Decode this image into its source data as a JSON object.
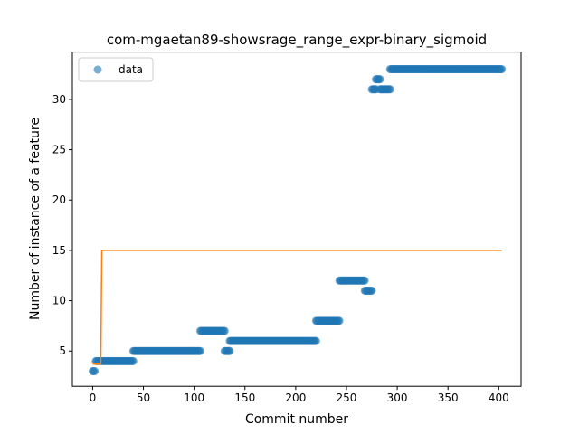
{
  "chart_data": {
    "type": "scatter",
    "title": "com-mgaetan89-showsrage_range_expr-binary_sigmoid",
    "xlabel": "Commit number",
    "ylabel": "Number of instance of a feature",
    "xlim": [
      -20,
      422
    ],
    "ylim": [
      1.5,
      34.7
    ],
    "xticks": [
      0,
      50,
      100,
      150,
      200,
      250,
      300,
      350,
      400
    ],
    "yticks": [
      5,
      10,
      15,
      20,
      25,
      30
    ],
    "legend": {
      "position": "top-left",
      "entries": [
        "data"
      ]
    },
    "colors": {
      "data": "#1f77b4",
      "fit": "#ff7f0e"
    },
    "segments": [
      {
        "x_start": 0,
        "x_end": 2,
        "y": 3
      },
      {
        "x_start": 3,
        "x_end": 40,
        "y": 4
      },
      {
        "x_start": 40,
        "x_end": 106,
        "y": 5
      },
      {
        "x_start": 106,
        "x_end": 130,
        "y": 7
      },
      {
        "x_start": 130,
        "x_end": 135,
        "y": 5
      },
      {
        "x_start": 135,
        "x_end": 220,
        "y": 6
      },
      {
        "x_start": 220,
        "x_end": 243,
        "y": 8
      },
      {
        "x_start": 243,
        "x_end": 268,
        "y": 12
      },
      {
        "x_start": 268,
        "x_end": 275,
        "y": 11
      },
      {
        "x_start": 275,
        "x_end": 279,
        "y": 31
      },
      {
        "x_start": 279,
        "x_end": 283,
        "y": 32
      },
      {
        "x_start": 283,
        "x_end": 293,
        "y": 31
      },
      {
        "x_start": 293,
        "x_end": 403,
        "y": 33
      }
    ],
    "fit_line": {
      "x": [
        0,
        8,
        9,
        403
      ],
      "y": [
        3.7,
        3.7,
        15,
        15
      ]
    }
  }
}
